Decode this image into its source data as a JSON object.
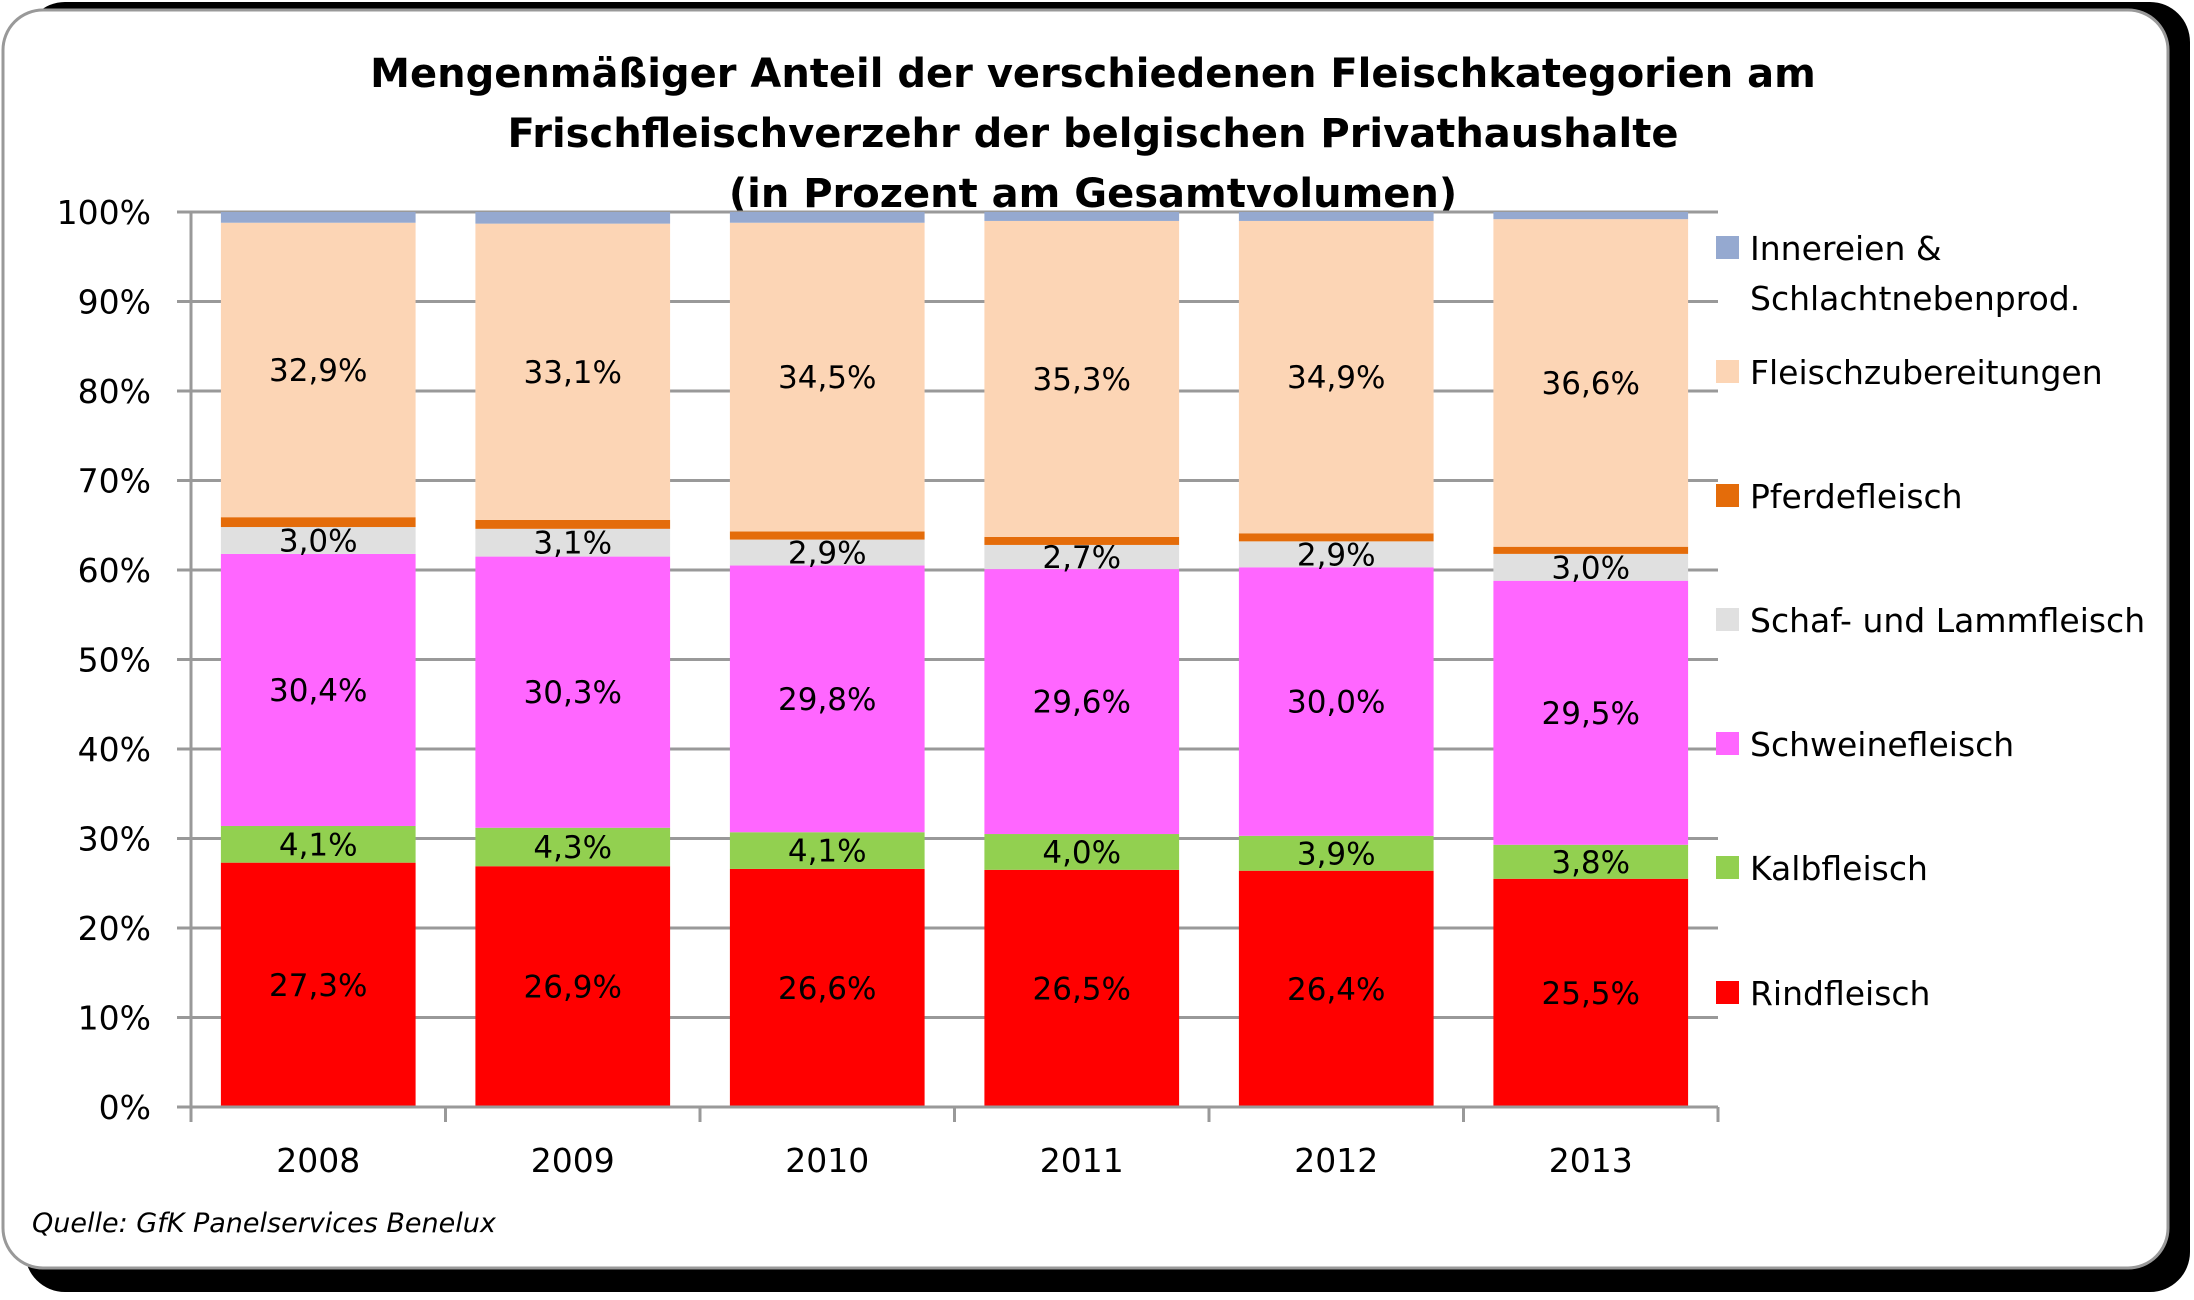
{
  "chart_data": {
    "type": "bar",
    "stacked": true,
    "percent_stacked": true,
    "title_lines": [
      "Mengenmäßiger Anteil der verschiedenen Fleischkategorien am",
      "Frischfleischverzehr der belgischen Privathaushalte",
      "(in Prozent am Gesamtvolumen)"
    ],
    "xlabel": "",
    "ylabel": "",
    "ylim": [
      0,
      100
    ],
    "yticks": [
      0,
      10,
      20,
      30,
      40,
      50,
      60,
      70,
      80,
      90,
      100
    ],
    "ytick_labels": [
      "0%",
      "10%",
      "20%",
      "30%",
      "40%",
      "50%",
      "60%",
      "70%",
      "80%",
      "90%",
      "100%"
    ],
    "grid": true,
    "legend_position": "right",
    "categories": [
      "2008",
      "2009",
      "2010",
      "2011",
      "2012",
      "2013"
    ],
    "series": [
      {
        "name": "Rindfleisch",
        "color": "#ff0000",
        "values": [
          27.3,
          26.9,
          26.6,
          26.5,
          26.4,
          25.5
        ],
        "labels": [
          "27,3%",
          "26,9%",
          "26,6%",
          "26,5%",
          "26,4%",
          "25,5%"
        ]
      },
      {
        "name": "Kalbfleisch",
        "color": "#92d050",
        "values": [
          4.1,
          4.3,
          4.1,
          4.0,
          3.9,
          3.8
        ],
        "labels": [
          "4,1%",
          "4,3%",
          "4,1%",
          "4,0%",
          "3,9%",
          "3,8%"
        ]
      },
      {
        "name": "Schweinefleisch",
        "color": "#ff66ff",
        "values": [
          30.4,
          30.3,
          29.8,
          29.6,
          30.0,
          29.5
        ],
        "labels": [
          "30,4%",
          "30,3%",
          "29,8%",
          "29,6%",
          "30,0%",
          "29,5%"
        ]
      },
      {
        "name": "Schaf- und Lammfleisch",
        "color": "#e0e0e0",
        "values": [
          3.0,
          3.1,
          2.9,
          2.7,
          2.9,
          3.0
        ],
        "labels": [
          "3,0%",
          "3,1%",
          "2,9%",
          "2,7%",
          "2,9%",
          "3,0%"
        ]
      },
      {
        "name": "Pferdefleisch",
        "color": "#e46c0a",
        "values": [
          1.1,
          1.0,
          0.9,
          0.9,
          0.9,
          0.8
        ],
        "labels": null
      },
      {
        "name": "Fleischzubereitungen",
        "color": "#fcd5b5",
        "values": [
          32.9,
          33.1,
          34.5,
          35.3,
          34.9,
          36.6
        ],
        "labels": [
          "32,9%",
          "33,1%",
          "34,5%",
          "35,3%",
          "34,9%",
          "36,6%"
        ]
      },
      {
        "name": "Innereien & Schlachtnebenprod.",
        "color": "#95a9d0",
        "values": [
          1.2,
          1.3,
          1.2,
          1.0,
          1.0,
          0.8
        ],
        "labels": null
      }
    ],
    "legend": [
      {
        "lines": [
          "Innereien &",
          "Schlachtnebenprod."
        ],
        "color": "#95a9d0"
      },
      {
        "lines": [
          "Fleischzubereitungen"
        ],
        "color": "#fcd5b5"
      },
      {
        "lines": [
          "Pferdefleisch"
        ],
        "color": "#e46c0a"
      },
      {
        "lines": [
          "Schaf- und Lammfleisch"
        ],
        "color": "#e0e0e0"
      },
      {
        "lines": [
          "Schweinefleisch"
        ],
        "color": "#ff66ff"
      },
      {
        "lines": [
          "Kalbfleisch"
        ],
        "color": "#92d050"
      },
      {
        "lines": [
          "Rindfleisch"
        ],
        "color": "#ff0000"
      }
    ],
    "source": "Quelle: GfK Panelservices Benelux"
  }
}
